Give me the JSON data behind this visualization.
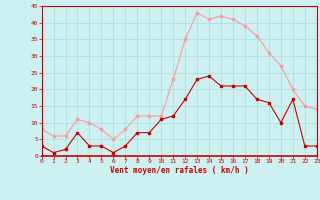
{
  "hours": [
    0,
    1,
    2,
    3,
    4,
    5,
    6,
    7,
    8,
    9,
    10,
    11,
    12,
    13,
    14,
    15,
    16,
    17,
    18,
    19,
    20,
    21,
    22,
    23
  ],
  "wind_avg": [
    3,
    1,
    2,
    7,
    3,
    3,
    1,
    3,
    7,
    7,
    11,
    12,
    17,
    23,
    24,
    21,
    21,
    21,
    17,
    16,
    10,
    17,
    3,
    3
  ],
  "wind_gust": [
    8,
    6,
    6,
    11,
    10,
    8,
    5,
    8,
    12,
    12,
    12,
    23,
    35,
    43,
    41,
    42,
    41,
    39,
    36,
    31,
    27,
    20,
    15,
    14
  ],
  "xlabel": "Vent moyen/en rafales ( km/h )",
  "ylim": [
    0,
    45
  ],
  "yticks": [
    0,
    5,
    10,
    15,
    20,
    25,
    30,
    35,
    40,
    45
  ],
  "xticks": [
    0,
    1,
    2,
    3,
    4,
    5,
    6,
    7,
    8,
    9,
    10,
    11,
    12,
    13,
    14,
    15,
    16,
    17,
    18,
    19,
    20,
    21,
    22,
    23
  ],
  "bg_color": "#cdf0f0",
  "grid_color": "#aadddd",
  "avg_color": "#cc0000",
  "gust_color": "#ff9999",
  "label_color": "#cc0000",
  "tick_color": "#cc0000",
  "spine_color": "#cc0000"
}
